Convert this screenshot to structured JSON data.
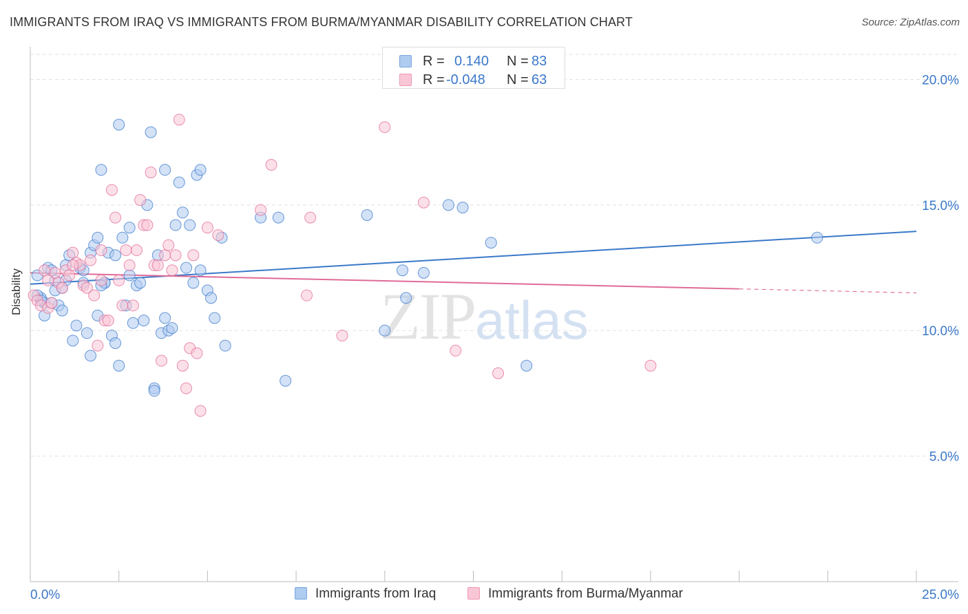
{
  "title": "IMMIGRANTS FROM IRAQ VS IMMIGRANTS FROM BURMA/MYANMAR DISABILITY CORRELATION CHART",
  "source": "Source: ZipAtlas.com",
  "watermark": {
    "zip": "ZIP",
    "atlas": "atlas"
  },
  "legend": {
    "rows": [
      {
        "r_label": "R =",
        "r_value": "0.140",
        "n_label": "N =",
        "n_value": "83",
        "color": "#aecbf0",
        "border": "#7aa6e0"
      },
      {
        "r_label": "R =",
        "r_value": "-0.048",
        "n_label": "N =",
        "n_value": "63",
        "color": "#f9c6d6",
        "border": "#ef98b4"
      }
    ]
  },
  "bottom_legend": [
    {
      "label": "Immigrants from Iraq",
      "color": "#aecbf0",
      "border": "#7aa6e0"
    },
    {
      "label": "Immigrants from Burma/Myanmar",
      "color": "#f9c6d6",
      "border": "#ef98b4"
    }
  ],
  "chart_data": {
    "type": "scatter",
    "title": "IMMIGRANTS FROM IRAQ VS IMMIGRANTS FROM BURMA/MYANMAR DISABILITY CORRELATION CHART",
    "xlabel": "",
    "ylabel": "Disability",
    "xlim": [
      0,
      25
    ],
    "ylim": [
      0,
      21
    ],
    "x_tick_labels": [
      "0.0%",
      "25.0%"
    ],
    "y_ticks": [
      5,
      10,
      15,
      20
    ],
    "y_tick_labels": [
      "5.0%",
      "10.0%",
      "15.0%",
      "20.0%"
    ],
    "grid": true,
    "legend_position": "top-center",
    "colors": {
      "iraq": "#3a78c9",
      "burma": "#e06a98",
      "tick_text": "#3a78c9"
    },
    "series": [
      {
        "name": "Immigrants from Iraq",
        "color": "#3a78c9",
        "fill": "#aecbf0",
        "trend": {
          "x0": 0,
          "y0": 11.85,
          "x1": 25,
          "y1": 13.95
        },
        "points": [
          [
            0.2,
            12.2
          ],
          [
            0.3,
            11.3
          ],
          [
            0.4,
            10.6
          ],
          [
            0.5,
            12.5
          ],
          [
            0.6,
            12.4
          ],
          [
            0.7,
            11.6
          ],
          [
            0.7,
            12.0
          ],
          [
            0.8,
            11.0
          ],
          [
            0.9,
            10.8
          ],
          [
            0.9,
            11.7
          ],
          [
            1.0,
            12.6
          ],
          [
            1.1,
            13.0
          ],
          [
            1.2,
            9.6
          ],
          [
            1.3,
            10.2
          ],
          [
            1.4,
            12.5
          ],
          [
            1.5,
            11.9
          ],
          [
            1.5,
            12.4
          ],
          [
            1.6,
            9.9
          ],
          [
            1.7,
            9.0
          ],
          [
            1.7,
            13.1
          ],
          [
            1.8,
            13.4
          ],
          [
            1.9,
            13.7
          ],
          [
            1.9,
            10.6
          ],
          [
            2.0,
            16.4
          ],
          [
            2.1,
            11.9
          ],
          [
            2.1,
            11.9
          ],
          [
            2.2,
            13.1
          ],
          [
            2.3,
            9.8
          ],
          [
            2.4,
            13.0
          ],
          [
            2.4,
            9.5
          ],
          [
            2.5,
            8.6
          ],
          [
            2.5,
            18.2
          ],
          [
            2.6,
            13.7
          ],
          [
            2.7,
            11.0
          ],
          [
            2.8,
            14.1
          ],
          [
            2.8,
            12.2
          ],
          [
            2.9,
            10.3
          ],
          [
            3.0,
            11.8
          ],
          [
            3.1,
            11.9
          ],
          [
            3.2,
            10.4
          ],
          [
            3.3,
            15.0
          ],
          [
            3.4,
            17.9
          ],
          [
            3.5,
            7.7
          ],
          [
            3.6,
            13.0
          ],
          [
            3.7,
            9.9
          ],
          [
            3.8,
            10.5
          ],
          [
            3.8,
            16.4
          ],
          [
            3.9,
            10.0
          ],
          [
            4.0,
            10.1
          ],
          [
            4.1,
            14.2
          ],
          [
            4.2,
            15.9
          ],
          [
            4.3,
            14.7
          ],
          [
            4.4,
            12.5
          ],
          [
            4.5,
            14.2
          ],
          [
            4.6,
            11.9
          ],
          [
            4.7,
            16.2
          ],
          [
            4.8,
            16.4
          ],
          [
            4.8,
            12.4
          ],
          [
            5.0,
            11.6
          ],
          [
            5.1,
            11.3
          ],
          [
            5.2,
            10.5
          ],
          [
            5.4,
            13.7
          ],
          [
            5.5,
            9.4
          ],
          [
            6.5,
            14.5
          ],
          [
            7.0,
            14.5
          ],
          [
            7.2,
            8.0
          ],
          [
            9.5,
            14.6
          ],
          [
            10.0,
            10.0
          ],
          [
            10.5,
            12.4
          ],
          [
            10.6,
            11.3
          ],
          [
            11.1,
            12.3
          ],
          [
            11.8,
            15.0
          ],
          [
            12.2,
            14.9
          ],
          [
            13.0,
            13.5
          ],
          [
            14.0,
            8.6
          ],
          [
            22.2,
            13.7
          ],
          [
            0.4,
            11.1
          ],
          [
            0.6,
            11.1
          ],
          [
            1.0,
            12.0
          ],
          [
            2.0,
            11.8
          ],
          [
            3.5,
            7.6
          ],
          [
            0.2,
            11.4
          ],
          [
            0.3,
            11.2
          ]
        ]
      },
      {
        "name": "Immigrants from Burma/Myanmar",
        "color": "#e06a98",
        "fill": "#f9c6d6",
        "trend": {
          "x0": 0,
          "y0": 12.3,
          "x1": 25,
          "y1": 11.5,
          "solid_until": 20
        },
        "points": [
          [
            0.1,
            11.4
          ],
          [
            0.2,
            11.2
          ],
          [
            0.3,
            11.0
          ],
          [
            0.4,
            12.4
          ],
          [
            0.5,
            10.9
          ],
          [
            0.6,
            11.1
          ],
          [
            0.7,
            12.3
          ],
          [
            0.8,
            11.9
          ],
          [
            0.9,
            11.7
          ],
          [
            1.0,
            12.4
          ],
          [
            1.1,
            12.2
          ],
          [
            1.2,
            13.1
          ],
          [
            1.3,
            12.7
          ],
          [
            1.4,
            12.6
          ],
          [
            1.5,
            11.8
          ],
          [
            1.6,
            11.7
          ],
          [
            1.7,
            12.8
          ],
          [
            1.8,
            11.4
          ],
          [
            1.9,
            9.4
          ],
          [
            2.0,
            13.2
          ],
          [
            2.1,
            10.4
          ],
          [
            2.2,
            10.4
          ],
          [
            2.3,
            15.6
          ],
          [
            2.4,
            14.5
          ],
          [
            2.5,
            12.0
          ],
          [
            2.6,
            11.0
          ],
          [
            2.7,
            13.2
          ],
          [
            2.8,
            12.6
          ],
          [
            2.9,
            11.0
          ],
          [
            3.0,
            13.2
          ],
          [
            3.1,
            15.2
          ],
          [
            3.2,
            14.2
          ],
          [
            3.3,
            14.2
          ],
          [
            3.4,
            16.3
          ],
          [
            3.5,
            12.6
          ],
          [
            3.6,
            12.6
          ],
          [
            3.7,
            8.8
          ],
          [
            3.8,
            13.0
          ],
          [
            3.9,
            13.4
          ],
          [
            4.0,
            12.4
          ],
          [
            4.1,
            13.0
          ],
          [
            4.2,
            18.4
          ],
          [
            4.3,
            8.6
          ],
          [
            4.4,
            7.7
          ],
          [
            4.5,
            9.3
          ],
          [
            4.6,
            13.0
          ],
          [
            4.7,
            9.1
          ],
          [
            4.8,
            6.8
          ],
          [
            5.0,
            14.1
          ],
          [
            5.3,
            13.8
          ],
          [
            6.5,
            14.8
          ],
          [
            6.8,
            16.6
          ],
          [
            7.8,
            11.4
          ],
          [
            7.9,
            14.5
          ],
          [
            8.8,
            9.8
          ],
          [
            10.0,
            18.1
          ],
          [
            11.1,
            15.1
          ],
          [
            12.0,
            9.2
          ],
          [
            13.2,
            8.3
          ],
          [
            17.5,
            8.6
          ],
          [
            0.5,
            12.0
          ],
          [
            1.2,
            12.6
          ],
          [
            2.0,
            12.0
          ]
        ]
      }
    ]
  }
}
